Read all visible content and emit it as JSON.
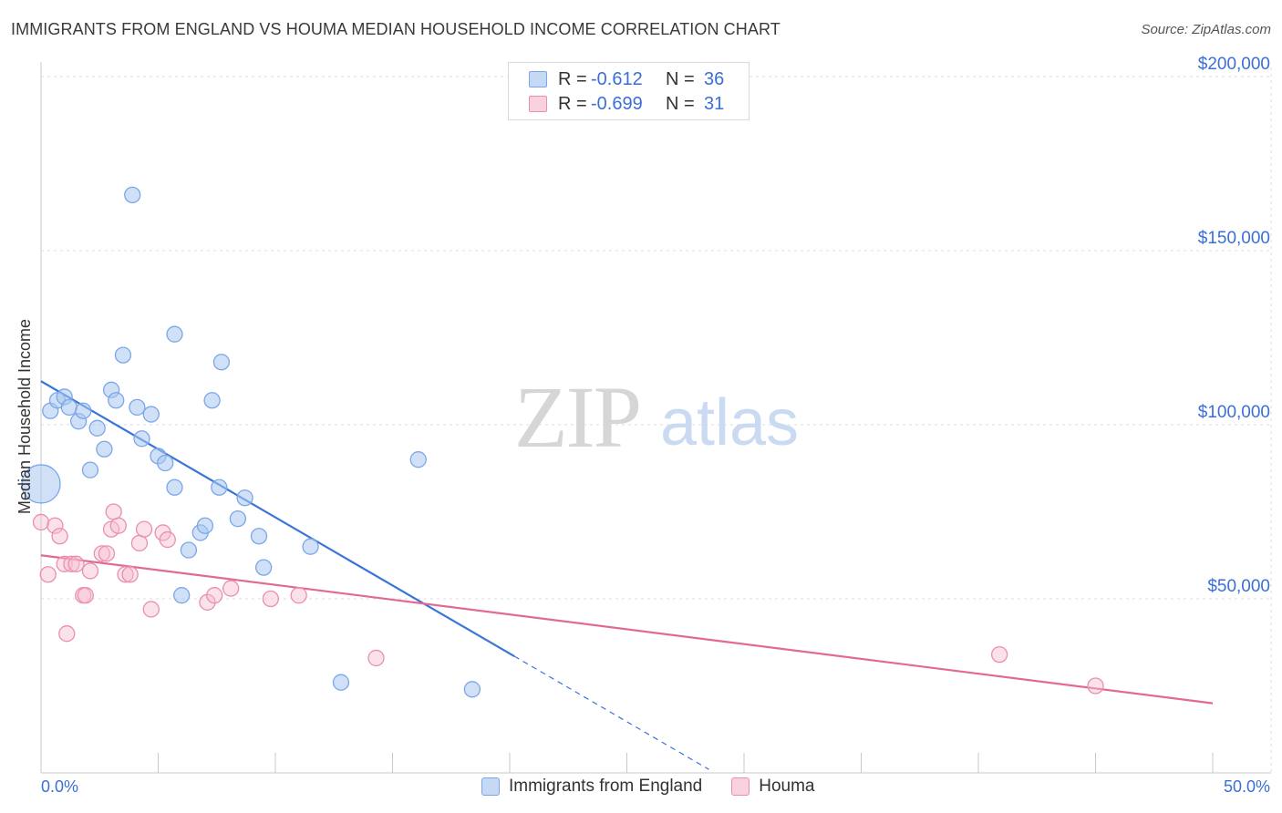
{
  "title": "IMMIGRANTS FROM ENGLAND VS HOUMA MEDIAN HOUSEHOLD INCOME CORRELATION CHART",
  "source": "Source: ZipAtlas.com",
  "watermark": {
    "zip": "ZIP",
    "atlas": "atlas"
  },
  "legend": {
    "rows": [
      {
        "r_label": "R =",
        "r_value": "-0.612",
        "n_label": "N =",
        "n_value": "36",
        "color": "#7ba7e8",
        "fill": "#c5d9f5"
      },
      {
        "r_label": "R =",
        "r_value": "-0.699",
        "n_label": "N =",
        "n_value": "31",
        "color": "#ea8fae",
        "fill": "#f9d0dd"
      }
    ]
  },
  "bottom_legend": [
    {
      "label": "Immigrants from England",
      "color": "#7ba7e8",
      "fill": "#c5d9f5"
    },
    {
      "label": "Houma",
      "color": "#ea8fae",
      "fill": "#f9d0dd"
    }
  ],
  "chart_data": {
    "type": "scatter",
    "title": "IMMIGRANTS FROM ENGLAND VS HOUMA MEDIAN HOUSEHOLD INCOME CORRELATION CHART",
    "xlabel": "",
    "ylabel": "Median Household Income",
    "xlim": [
      0,
      50
    ],
    "ylim": [
      0,
      205000
    ],
    "x_tick_labels": [
      "0.0%",
      "50.0%"
    ],
    "y_ticks": [
      50000,
      100000,
      150000,
      200000
    ],
    "y_tick_labels": [
      "$50,000",
      "$100,000",
      "$150,000",
      "$200,000"
    ],
    "grid": true,
    "series": [
      {
        "name": "Immigrants from England",
        "color": "#3a74d6",
        "points": [
          [
            0.0,
            83000
          ],
          [
            0.4,
            104000
          ],
          [
            0.7,
            107000
          ],
          [
            1.0,
            108000
          ],
          [
            1.2,
            105000
          ],
          [
            1.6,
            101000
          ],
          [
            1.8,
            104000
          ],
          [
            2.1,
            87000
          ],
          [
            2.4,
            99000
          ],
          [
            2.7,
            93000
          ],
          [
            3.0,
            110000
          ],
          [
            3.2,
            107000
          ],
          [
            3.5,
            120000
          ],
          [
            3.9,
            166000
          ],
          [
            4.1,
            105000
          ],
          [
            4.3,
            96000
          ],
          [
            4.7,
            103000
          ],
          [
            5.0,
            91000
          ],
          [
            5.3,
            89000
          ],
          [
            5.7,
            82000
          ],
          [
            5.7,
            126000
          ],
          [
            6.0,
            51000
          ],
          [
            6.3,
            64000
          ],
          [
            6.8,
            69000
          ],
          [
            7.0,
            71000
          ],
          [
            7.3,
            107000
          ],
          [
            7.6,
            82000
          ],
          [
            7.7,
            118000
          ],
          [
            8.4,
            73000
          ],
          [
            8.7,
            79000
          ],
          [
            9.3,
            68000
          ],
          [
            9.5,
            59000
          ],
          [
            11.5,
            65000
          ],
          [
            12.8,
            26000
          ],
          [
            16.1,
            90000
          ],
          [
            18.4,
            24000
          ]
        ],
        "trend": {
          "x": [
            0,
            20.2
          ],
          "y": [
            112500,
            33500
          ],
          "dashed_to": [
            28.5,
            1000
          ]
        }
      },
      {
        "name": "Houma",
        "color": "#e06a94",
        "points": [
          [
            0.0,
            72000
          ],
          [
            0.3,
            57000
          ],
          [
            0.6,
            71000
          ],
          [
            0.8,
            68000
          ],
          [
            1.0,
            60000
          ],
          [
            1.1,
            40000
          ],
          [
            1.3,
            60000
          ],
          [
            1.5,
            60000
          ],
          [
            1.8,
            51000
          ],
          [
            1.9,
            51000
          ],
          [
            2.1,
            58000
          ],
          [
            2.6,
            63000
          ],
          [
            2.8,
            63000
          ],
          [
            3.0,
            70000
          ],
          [
            3.1,
            75000
          ],
          [
            3.3,
            71000
          ],
          [
            3.6,
            57000
          ],
          [
            3.8,
            57000
          ],
          [
            4.2,
            66000
          ],
          [
            4.4,
            70000
          ],
          [
            4.7,
            47000
          ],
          [
            5.2,
            69000
          ],
          [
            5.4,
            67000
          ],
          [
            7.1,
            49000
          ],
          [
            7.4,
            51000
          ],
          [
            8.1,
            53000
          ],
          [
            9.8,
            50000
          ],
          [
            11.0,
            51000
          ],
          [
            14.3,
            33000
          ],
          [
            40.9,
            34000
          ],
          [
            45.0,
            25000
          ]
        ],
        "trend": {
          "x": [
            0,
            50
          ],
          "y": [
            62500,
            20000
          ]
        }
      }
    ]
  }
}
